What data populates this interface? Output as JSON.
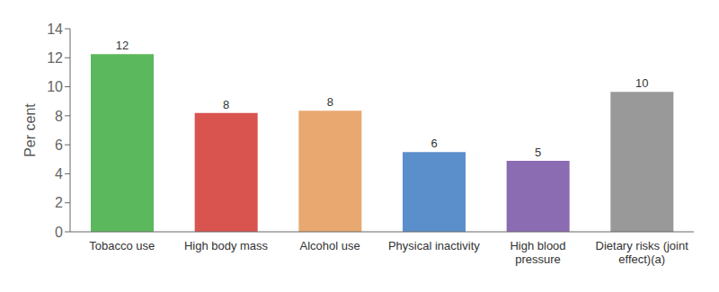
{
  "chart_data": {
    "type": "bar",
    "categories": [
      "Tobacco use",
      "High body mass",
      "Alcohol use",
      "Physical inactivity",
      "High blood\npressure",
      "Dietary risks (joint\neffect)(a)"
    ],
    "values": [
      12.25,
      8.2,
      8.35,
      5.5,
      4.9,
      9.65
    ],
    "value_labels": [
      "12",
      "8",
      "8",
      "6",
      "5",
      "10"
    ],
    "data_labels": true,
    "colors": [
      "#5cb85c",
      "#d9534f",
      "#e8a870",
      "#5b8fcc",
      "#8b6bb1",
      "#999999"
    ],
    "ylabel": "Per cent",
    "ylim": [
      0,
      14
    ],
    "yticks": [
      0,
      2,
      4,
      6,
      8,
      10,
      12,
      14
    ],
    "grid": false
  }
}
